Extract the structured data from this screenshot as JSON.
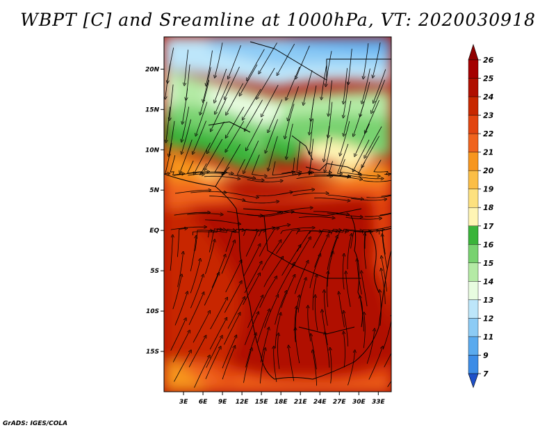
{
  "title": "WBPT [C] and Sreamline at 1000hPa, VT: 2020030918",
  "credit": "GrADS: IGES/COLA",
  "map": {
    "lon_range": [
      0,
      35
    ],
    "lat_range": [
      -20,
      24
    ],
    "lon_ticks": [
      {
        "value": 3,
        "label": "3E"
      },
      {
        "value": 6,
        "label": "6E"
      },
      {
        "value": 9,
        "label": "9E"
      },
      {
        "value": 12,
        "label": "12E"
      },
      {
        "value": 15,
        "label": "15E"
      },
      {
        "value": 18,
        "label": "18E"
      },
      {
        "value": 21,
        "label": "21E"
      },
      {
        "value": 24,
        "label": "24E"
      },
      {
        "value": 27,
        "label": "27E"
      },
      {
        "value": 30,
        "label": "30E"
      },
      {
        "value": 33,
        "label": "33E"
      }
    ],
    "lat_ticks": [
      {
        "value": 20,
        "label": "20N"
      },
      {
        "value": 15,
        "label": "15N"
      },
      {
        "value": 10,
        "label": "10N"
      },
      {
        "value": 5,
        "label": "5N"
      },
      {
        "value": 0,
        "label": "EQ"
      },
      {
        "value": -5,
        "label": "5S"
      },
      {
        "value": -10,
        "label": "10S"
      },
      {
        "value": -15,
        "label": "15S"
      }
    ]
  },
  "colorbar": {
    "levels": [
      {
        "label": "26",
        "color": "#a50000"
      },
      {
        "label": "25",
        "color": "#b00f00"
      },
      {
        "label": "24",
        "color": "#c82800"
      },
      {
        "label": "23",
        "color": "#e24510"
      },
      {
        "label": "22",
        "color": "#f0641e"
      },
      {
        "label": "21",
        "color": "#f7961e"
      },
      {
        "label": "20",
        "color": "#fbbe46"
      },
      {
        "label": "19",
        "color": "#fde17f"
      },
      {
        "label": "18",
        "color": "#fff5b4"
      },
      {
        "label": "17",
        "color": "#3ab43a"
      },
      {
        "label": "16",
        "color": "#78d270"
      },
      {
        "label": "15",
        "color": "#b4eaa5"
      },
      {
        "label": "14",
        "color": "#e8fce0"
      },
      {
        "label": "13",
        "color": "#bde6fa"
      },
      {
        "label": "12",
        "color": "#8ccbf5"
      },
      {
        "label": "11",
        "color": "#5aaaee"
      },
      {
        "label": "9",
        "color": "#3c8ce6"
      },
      {
        "label": "7",
        "color": "#1e64d2"
      }
    ],
    "top_color": "#900000",
    "bottom_color": "#1e50c8"
  }
}
